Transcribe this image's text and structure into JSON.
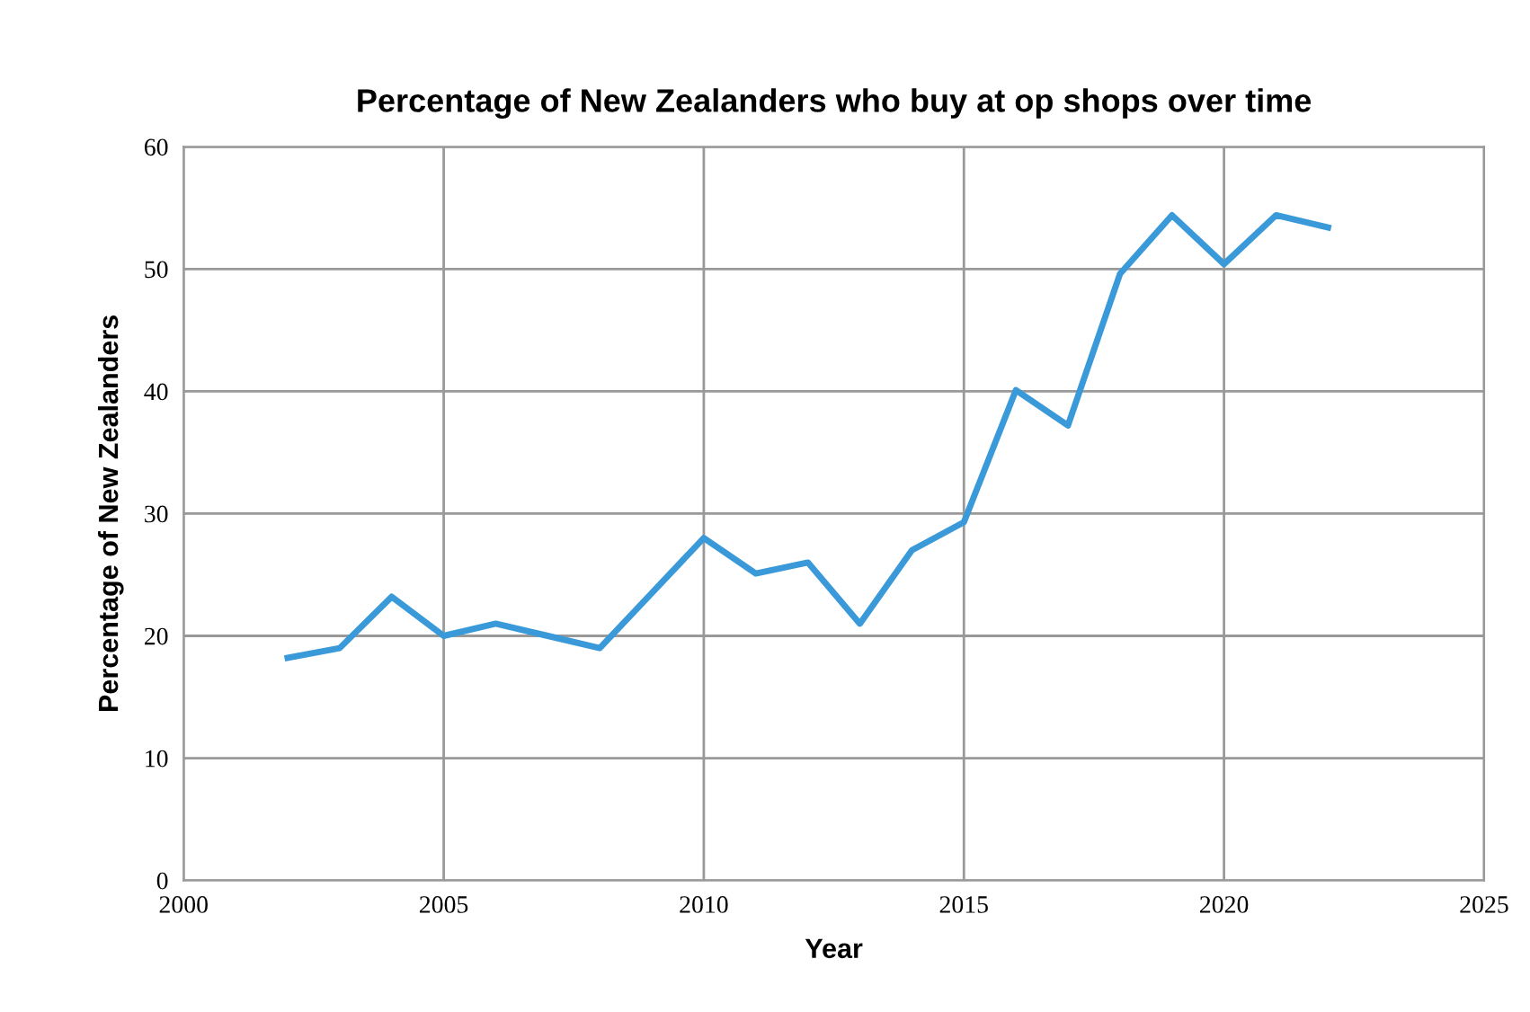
{
  "chart_data": {
    "type": "line",
    "title": "Percentage of New Zealanders who buy at op shops over time",
    "xlabel": "Year",
    "ylabel": "Percentage of New Zealanders",
    "x": [
      2002,
      2003,
      2004,
      2005,
      2006,
      2007,
      2008,
      2009,
      2010,
      2011,
      2012,
      2013,
      2014,
      2015,
      2016,
      2017,
      2018,
      2019,
      2020,
      2021,
      2022
    ],
    "series": [
      {
        "color": "#3a9ad9",
        "values": [
          18.2,
          19,
          23.2,
          20,
          21,
          20,
          19,
          23.5,
          28,
          25.1,
          26,
          21,
          27,
          29.3,
          40.1,
          37.2,
          49.6,
          54.4,
          50.4,
          54.4,
          53.4
        ]
      }
    ],
    "xlim": [
      2000,
      2025
    ],
    "xticks": [
      2000,
      2005,
      2010,
      2015,
      2020,
      2025
    ],
    "ylim": [
      0,
      60
    ],
    "yticks": [
      0,
      10,
      20,
      30,
      40,
      50,
      60
    ],
    "grid": true,
    "marker": "none",
    "line_style": "solid"
  }
}
